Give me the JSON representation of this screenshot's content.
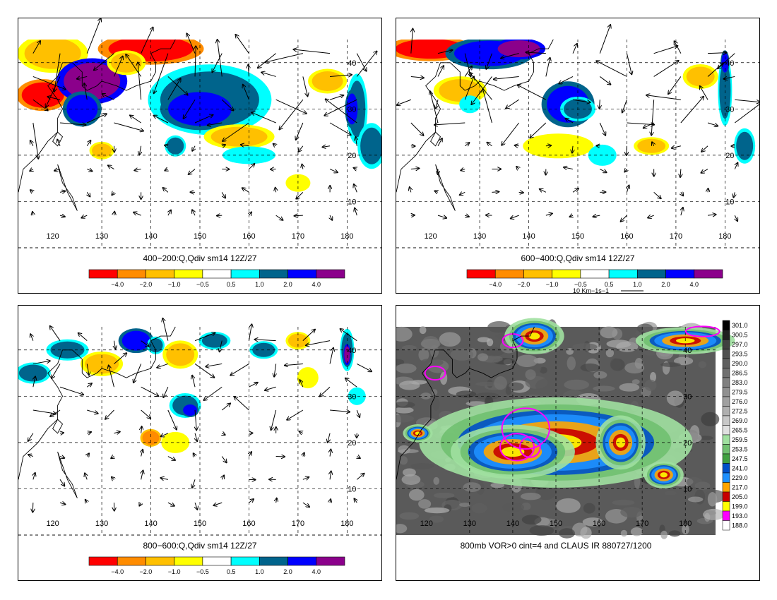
{
  "panels": [
    {
      "id": "p1",
      "title": "400−200:Q,Qdiv sm14 12Z/27",
      "x_ticks": [
        "120",
        "130",
        "140",
        "150",
        "160",
        "170",
        "180"
      ],
      "y_ticks": [
        "40",
        "30",
        "20",
        "10"
      ],
      "colorbar": [
        "−4.0",
        "−2.0",
        "−1.0",
        "−0.5",
        "0.5",
        "1.0",
        "2.0",
        "4.0"
      ],
      "vector_label": ""
    },
    {
      "id": "p2",
      "title": "600−400:Q,Qdiv sm14 12Z/27",
      "x_ticks": [
        "120",
        "130",
        "140",
        "150",
        "160",
        "170",
        "180"
      ],
      "y_ticks": [
        "40",
        "30",
        "20",
        "10"
      ],
      "colorbar": [
        "−4.0",
        "−2.0",
        "−1.0",
        "−0.5",
        "0.5",
        "1.0",
        "2.0",
        "4.0"
      ],
      "vector_label": "10 Km−1s−1"
    },
    {
      "id": "p3",
      "title": "800−600:Q,Qdiv sm14 12Z/27",
      "x_ticks": [
        "120",
        "130",
        "140",
        "150",
        "160",
        "170",
        "180"
      ],
      "y_ticks": [
        "40",
        "30",
        "20",
        "10"
      ],
      "colorbar": [
        "−4.0",
        "−2.0",
        "−1.0",
        "−0.5",
        "0.5",
        "1.0",
        "2.0",
        "4.0"
      ],
      "vector_label": ""
    },
    {
      "id": "p4",
      "title": "800mb VOR>0 cint=4 and CLAUS IR 880727/1200",
      "x_ticks": [
        "120",
        "130",
        "140",
        "150",
        "160",
        "170",
        "180"
      ],
      "y_ticks": [
        "40",
        "30",
        "20",
        "10"
      ],
      "ir_legend": [
        "301.0",
        "300.5",
        "297.0",
        "293.5",
        "290.0",
        "286.5",
        "283.0",
        "279.5",
        "276.0",
        "272.5",
        "269.0",
        "265.5",
        "259.5",
        "253.5",
        "247.5",
        "241.0",
        "229.0",
        "217.0",
        "205.0",
        "199.0",
        "193.0",
        "188.0"
      ]
    }
  ],
  "colors": {
    "div_palette": [
      "#ff0000",
      "#ff8c00",
      "#ffc000",
      "#ffff00",
      "#ffffff",
      "#00ffff",
      "#00648c",
      "#0000ff",
      "#8b008b"
    ],
    "ir_palette": [
      "#000000",
      "#202020",
      "#404040",
      "#505050",
      "#606060",
      "#707070",
      "#808080",
      "#909090",
      "#a0a0a0",
      "#b0b0b0",
      "#c8c8c8",
      "#e0e0e0",
      "#a0e0a0",
      "#70c070",
      "#40a040",
      "#0050c8",
      "#1e90ff",
      "#ffa500",
      "#c80000",
      "#ffff00",
      "#ff00ff",
      "#ffffff"
    ],
    "vorticity_contour": "#ff00ff"
  }
}
